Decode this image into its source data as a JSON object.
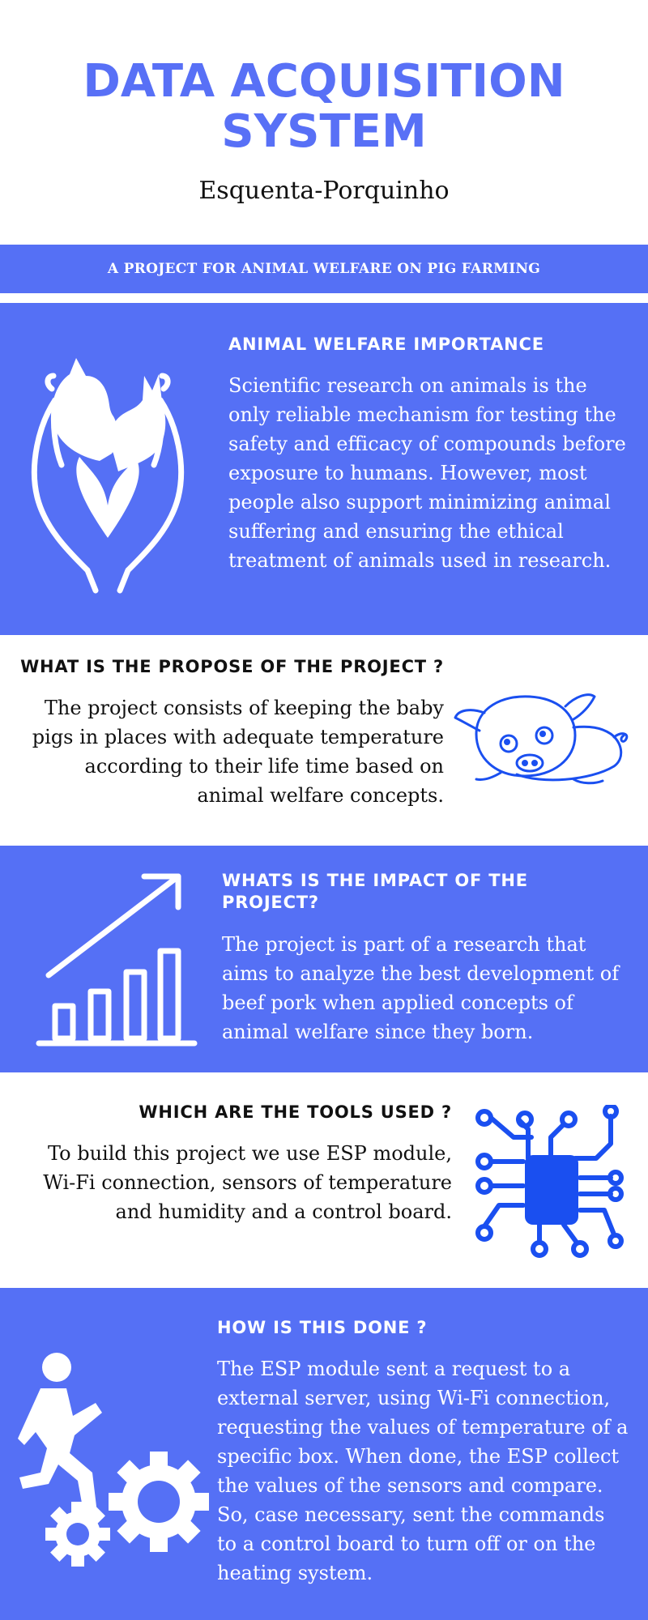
{
  "header": {
    "title_line1": "DATA ACQUISITION",
    "title_line2": "SYSTEM",
    "subtitle": "Esquenta-Porquinho"
  },
  "band": {
    "text": "A PROJECT FOR ANIMAL WELFARE ON PIG FARMING"
  },
  "sections": [
    {
      "heading": "ANIMAL WELFARE IMPORTANCE",
      "body": "Scientific research on animals is the only reliable mechanism for testing the safety and efficacy of compounds before exposure to humans. However, most people also support minimizing animal suffering and ensuring the ethical treatment of animals used in research.",
      "icon": "hands-holding-animals-icon"
    },
    {
      "heading": "WHAT IS THE PROPOSE OF THE PROJECT ?",
      "body": "The project consists of keeping the baby pigs in places with adequate temperature according to their life time based on animal welfare concepts.",
      "icon": "baby-pig-icon"
    },
    {
      "heading": "WHATS IS THE IMPACT OF THE PROJECT?",
      "body": "The project is part of a research that aims to analyze the best development of beef pork when applied concepts of animal welfare since they born.",
      "icon": "growth-chart-icon"
    },
    {
      "heading": "WHICH ARE THE TOOLS USED ?",
      "body": "To build this project we use ESP module, Wi-Fi connection, sensors of temperature and humidity and a control board.",
      "icon": "circuit-chip-icon"
    },
    {
      "heading": "HOW IS THIS DONE ?",
      "body": "The ESP module sent a request to a external server, using Wi-Fi connection, requesting the values of temperature of a specific box. When done, the ESP collect the values of the sensors and compare. So, case necessary, sent the commands to a control board to turn off or on the heating system.",
      "icon": "person-with-gears-icon"
    }
  ],
  "colors": {
    "primary": "#5570f5",
    "title": "#5870f6",
    "icon_blue": "#1a4ff0"
  }
}
